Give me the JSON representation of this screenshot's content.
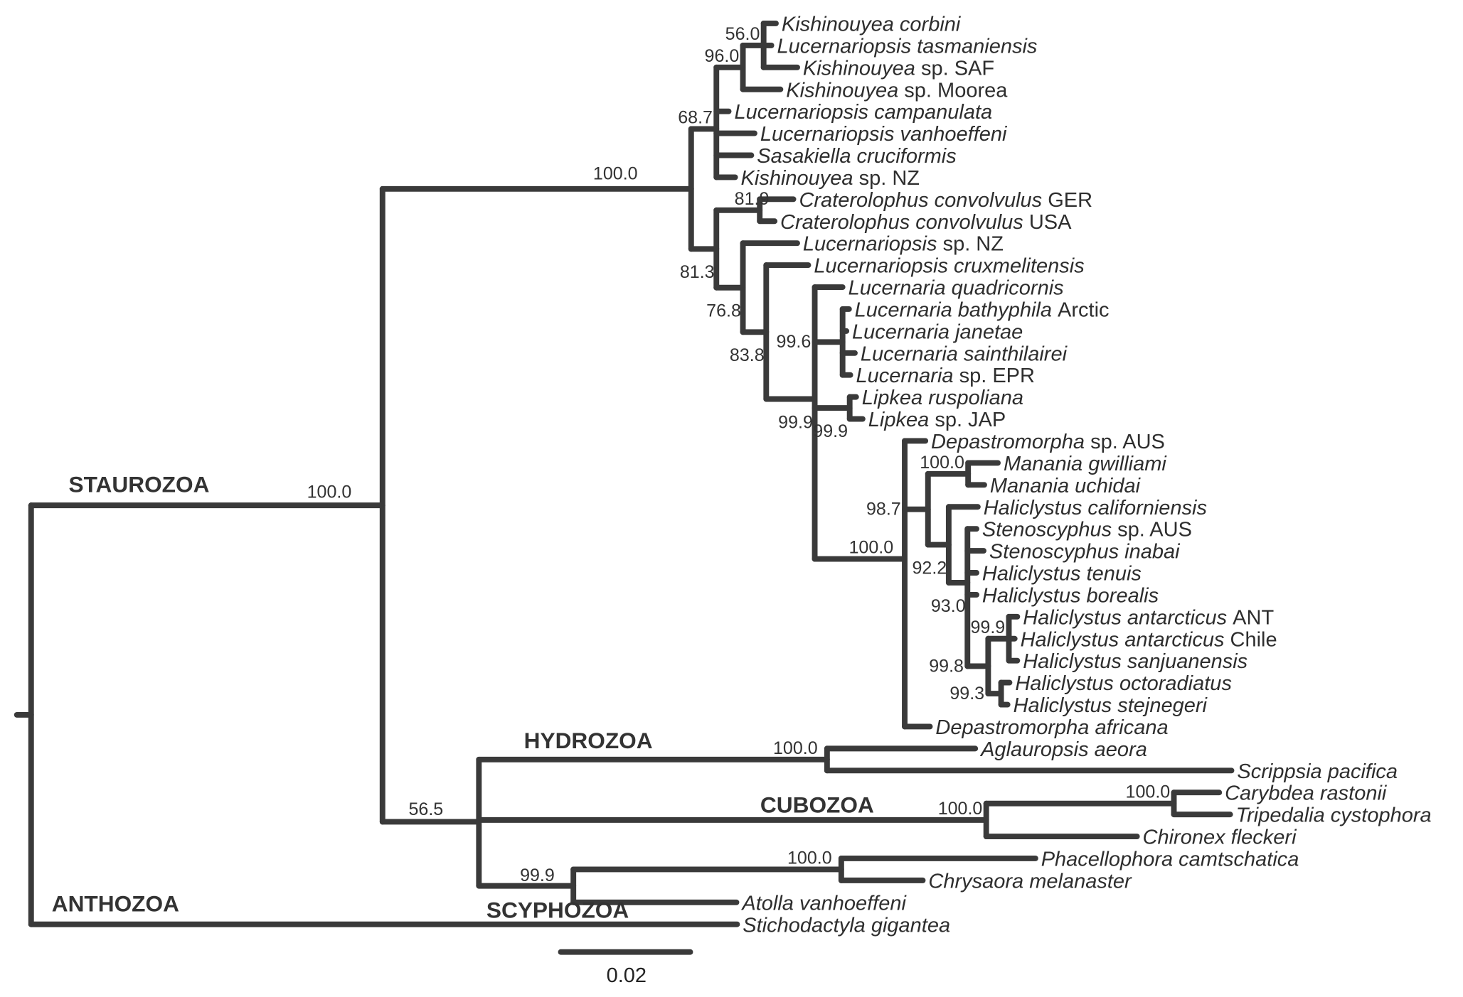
{
  "colors": {
    "branch": "#3a3a3a",
    "text": "#2e2e2e"
  },
  "scale_bar": {
    "length": 0.02,
    "label": "0.02"
  },
  "tree": {
    "id": "R",
    "len": 0.0022,
    "children": [
      {
        "id": "A",
        "len": 0.0543,
        "support": "100.0",
        "clade": "STAUROZOA",
        "children": [
          {
            "id": "S",
            "len": 0.0477,
            "support": "100.0",
            "children": [
              {
                "id": "C1",
                "len": 0.0039,
                "support": "68.7",
                "children": [
                  {
                    "id": "K96",
                    "len": 0.0041,
                    "support": "96.0",
                    "children": [
                      {
                        "id": "K56",
                        "len": 0.0032,
                        "support": "56.0",
                        "children": [
                          {
                            "len": 0.0019,
                            "italic": "Kishinouyea corbini",
                            "plain": ""
                          },
                          {
                            "len": 0.0012,
                            "italic": "Lucernariopsis tasmaniensis",
                            "plain": ""
                          },
                          {
                            "len": 0.0052,
                            "italic": "Kishinouyea",
                            "plain": "sp. SAF"
                          }
                        ]
                      },
                      {
                        "len": 0.0058,
                        "italic": "Kishinouyea",
                        "plain": "sp. Moorea"
                      }
                    ]
                  },
                  {
                    "len": 0.0019,
                    "italic": "Lucernariopsis campanulata",
                    "plain": ""
                  },
                  {
                    "len": 0.0059,
                    "italic": "Lucernariopsis vanhoeffeni",
                    "plain": ""
                  },
                  {
                    "len": 0.0054,
                    "italic": "Sasakiella cruciformis",
                    "plain": ""
                  },
                  {
                    "len": 0.0029,
                    "italic": "Kishinouyea",
                    "plain": "sp. NZ"
                  }
                ]
              },
              {
                "id": "C2",
                "len": 0.0039,
                "support": "81.3",
                "children": [
                  {
                    "id": "Crat",
                    "len": 0.0067,
                    "support": "81.9",
                    "children": [
                      {
                        "len": 0.0052,
                        "italic": "Craterolophus convolvulus",
                        "plain": "GER"
                      },
                      {
                        "len": 0.0023,
                        "italic": "Craterolophus convolvulus",
                        "plain": "USA"
                      }
                    ]
                  },
                  {
                    "id": "C3",
                    "len": 0.0041,
                    "support": "76.8",
                    "children": [
                      {
                        "len": 0.0084,
                        "italic": "Lucernariopsis",
                        "plain": "sp. NZ"
                      },
                      {
                        "id": "C4",
                        "len": 0.0036,
                        "support": "83.8",
                        "children": [
                          {
                            "len": 0.0065,
                            "italic": "Lucernariopsis cruxmelitensis",
                            "plain": ""
                          },
                          {
                            "id": "C5",
                            "len": 0.0075,
                            "support": "99.9",
                            "children": [
                              {
                                "len": 0.0043,
                                "italic": "Lucernaria quadricornis",
                                "plain": ""
                              },
                              {
                                "id": "Luc",
                                "len": 0.0043,
                                "support": "99.6",
                                "children": [
                                  {
                                    "len": 0.001,
                                    "italic": "Lucernaria bathyphila",
                                    "plain": "Arctic"
                                  },
                                  {
                                    "len": 0.0006,
                                    "italic": "Lucernaria janetae",
                                    "plain": ""
                                  },
                                  {
                                    "len": 0.0019,
                                    "italic": "Lucernaria sainthilairei",
                                    "plain": ""
                                  },
                                  {
                                    "len": 0.0012,
                                    "italic": "Lucernaria",
                                    "plain": "sp. EPR"
                                  }
                                ]
                              },
                              {
                                "id": "Lip",
                                "len": 0.0054,
                                "support": "99.9",
                                "children": [
                                  {
                                    "len": 0.001,
                                    "italic": "Lipkea ruspoliana",
                                    "plain": ""
                                  },
                                  {
                                    "len": 0.002,
                                    "italic": "Lipkea",
                                    "plain": "sp. JAP"
                                  }
                                ]
                              },
                              {
                                "id": "C6",
                                "len": 0.0139,
                                "support": "100.0",
                                "children": [
                                  {
                                    "len": 0.0032,
                                    "italic": "Depastromorpha",
                                    "plain": "sp. AUS"
                                  },
                                  {
                                    "id": "C7",
                                    "len": 0.0036,
                                    "support": "98.7",
                                    "children": [
                                      {
                                        "id": "Man",
                                        "len": 0.0062,
                                        "support": "100.0",
                                        "children": [
                                          {
                                            "len": 0.0046,
                                            "italic": "Manania gwilliami",
                                            "plain": ""
                                          },
                                          {
                                            "len": 0.0025,
                                            "italic": "Manania uchidai",
                                            "plain": ""
                                          }
                                        ]
                                      },
                                      {
                                        "id": "C8",
                                        "len": 0.0032,
                                        "support": "92.2",
                                        "children": [
                                          {
                                            "len": 0.0045,
                                            "italic": "Haliclystus californiensis",
                                            "plain": ""
                                          },
                                          {
                                            "id": "C9",
                                            "len": 0.0029,
                                            "support": "93.0",
                                            "children": [
                                              {
                                                "len": 0.0014,
                                                "italic": "Stenoscyphus",
                                                "plain": "sp. AUS"
                                              },
                                              {
                                                "len": 0.0025,
                                                "italic": "Stenoscyphus inabai",
                                                "plain": ""
                                              },
                                              {
                                                "len": 0.0014,
                                                "italic": "Haliclystus tenuis",
                                                "plain": ""
                                              },
                                              {
                                                "len": 0.0014,
                                                "italic": "Haliclystus borealis",
                                                "plain": ""
                                              },
                                              {
                                                "id": "C10",
                                                "len": 0.0032,
                                                "support": "99.8",
                                                "children": [
                                                  {
                                                    "id": "Ant",
                                                    "len": 0.0032,
                                                    "support": "99.9",
                                                    "children": [
                                                      {
                                                        "len": 0.0013,
                                                        "italic": "Haliclystus antarcticus",
                                                        "plain": "ANT"
                                                      },
                                                      {
                                                        "len": 0.0009,
                                                        "italic": "Haliclystus antarcticus",
                                                        "plain": "Chile"
                                                      },
                                                      {
                                                        "len": 0.0013,
                                                        "italic": "Haliclystus sanjuanensis",
                                                        "plain": ""
                                                      }
                                                    ]
                                                  },
                                                  {
                                                    "id": "Oct",
                                                    "len": 0.002,
                                                    "support": "99.3",
                                                    "children": [
                                                      {
                                                        "len": 0.0013,
                                                        "italic": "Haliclystus octoradiatus",
                                                        "plain": ""
                                                      },
                                                      {
                                                        "len": 0.001,
                                                        "italic": "Haliclystus stejnegeri",
                                                        "plain": ""
                                                      }
                                                    ]
                                                  }
                                                ]
                                              }
                                            ]
                                          }
                                        ]
                                      }
                                    ]
                                  },
                                  {
                                    "len": 0.0039,
                                    "italic": "Depastromorpha africana",
                                    "plain": ""
                                  }
                                ]
                              }
                            ]
                          }
                        ]
                      }
                    ]
                  }
                ]
              }
            ]
          },
          {
            "id": "M",
            "len": 0.0149,
            "support": "56.5",
            "children": [
              {
                "id": "Hyd",
                "len": 0.0538,
                "support": "100.0",
                "clade": "HYDROZOA",
                "children": [
                  {
                    "len": 0.0229,
                    "italic": "Aglauropsis aeora",
                    "plain": ""
                  },
                  {
                    "len": 0.0625,
                    "italic": "Scrippsia pacifica",
                    "plain": ""
                  }
                ]
              },
              {
                "id": "Cub",
                "len": 0.0784,
                "support": "100.0",
                "clade": "CUBOZOA",
                "children": [
                  {
                    "id": "CT",
                    "len": 0.029,
                    "support": "100.0",
                    "children": [
                      {
                        "len": 0.007,
                        "italic": "Carybdea rastonii",
                        "plain": ""
                      },
                      {
                        "len": 0.0087,
                        "italic": "Tripedalia cystophora",
                        "plain": ""
                      }
                    ]
                  },
                  {
                    "len": 0.0233,
                    "italic": "Chironex fleckeri",
                    "plain": ""
                  }
                ]
              },
              {
                "id": "Scy",
                "len": 0.0146,
                "support": "99.9",
                "clade": "SCYPHOZOA",
                "children": [
                  {
                    "id": "Sem",
                    "len": 0.0414,
                    "support": "100.0",
                    "children": [
                      {
                        "len": 0.03,
                        "italic": "Phacellophora camtschatica",
                        "plain": ""
                      },
                      {
                        "len": 0.0126,
                        "italic": "Chrysaora melanaster",
                        "plain": ""
                      }
                    ]
                  },
                  {
                    "len": 0.0252,
                    "italic": "Atolla vanhoeffeni",
                    "plain": ""
                  }
                ]
              }
            ]
          }
        ]
      },
      {
        "id": "Sti",
        "len": 0.1091,
        "italic": "Stichodactyla gigantea",
        "plain": "",
        "clade": "ANTHOZOA"
      }
    ]
  }
}
